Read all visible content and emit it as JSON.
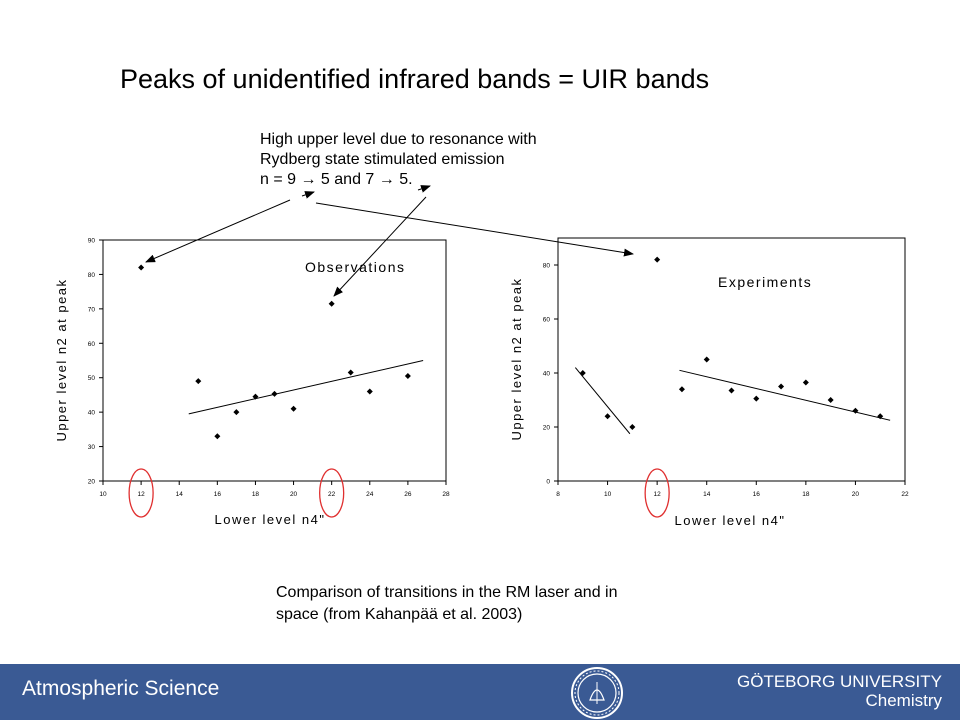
{
  "slide": {
    "title": "Peaks of unidentified infrared bands = UIR bands",
    "note_lines": [
      "High upper level due to resonance with",
      "Rydberg state stimulated emission",
      "n = 9 → 5 and 7 → 5."
    ],
    "caption_lines": [
      "Comparison of transitions in the RM laser and in",
      "space (from Kahanpää et al. 2003)"
    ]
  },
  "footer": {
    "left": "Atmospheric Science",
    "right_line1": "GÖTEBORG UNIVERSITY",
    "right_line2": "Chemistry",
    "background": "#3a5a94",
    "seal_icon": "university-seal-icon"
  },
  "chart_data": [
    {
      "type": "scatter",
      "title": "Observations",
      "xlabel": "Lower level n4\"",
      "ylabel": "Upper level n2 at peak",
      "xlim": [
        10,
        28
      ],
      "ylim": [
        20,
        90
      ],
      "xticks": [
        10,
        12,
        14,
        16,
        18,
        20,
        22,
        24,
        26,
        28
      ],
      "yticks": [
        20,
        30,
        40,
        50,
        60,
        70,
        80,
        90
      ],
      "points": [
        {
          "x": 12,
          "y": 82
        },
        {
          "x": 15,
          "y": 49
        },
        {
          "x": 16,
          "y": 33
        },
        {
          "x": 17,
          "y": 40
        },
        {
          "x": 18,
          "y": 44.5
        },
        {
          "x": 19,
          "y": 45.3
        },
        {
          "x": 20,
          "y": 41
        },
        {
          "x": 22,
          "y": 71.5
        },
        {
          "x": 23,
          "y": 51.5
        },
        {
          "x": 24,
          "y": 46
        },
        {
          "x": 26,
          "y": 50.5
        }
      ],
      "fits": [
        {
          "x": [
            14.5,
            26.8
          ],
          "y": [
            39.5,
            55
          ]
        }
      ],
      "highlight_x": [
        12,
        22
      ],
      "grid": false
    },
    {
      "type": "scatter",
      "title": "Experiments",
      "xlabel": "Lower level n4\"",
      "ylabel": "Upper level n2 at peak",
      "xlim": [
        8,
        22
      ],
      "ylim": [
        0,
        90
      ],
      "xticks": [
        8,
        10,
        12,
        14,
        16,
        18,
        20,
        22
      ],
      "yticks": [
        0,
        20,
        40,
        60,
        80
      ],
      "points": [
        {
          "x": 9,
          "y": 40
        },
        {
          "x": 10,
          "y": 24
        },
        {
          "x": 11,
          "y": 20
        },
        {
          "x": 12,
          "y": 82
        },
        {
          "x": 13,
          "y": 34
        },
        {
          "x": 14,
          "y": 45
        },
        {
          "x": 15,
          "y": 33.5
        },
        {
          "x": 16,
          "y": 30.5
        },
        {
          "x": 17,
          "y": 35
        },
        {
          "x": 18,
          "y": 36.5
        },
        {
          "x": 19,
          "y": 30
        },
        {
          "x": 20,
          "y": 26
        },
        {
          "x": 21,
          "y": 24
        }
      ],
      "fits": [
        {
          "x": [
            8.7,
            10.9
          ],
          "y": [
            42,
            17.5
          ]
        },
        {
          "x": [
            12.9,
            21.4
          ],
          "y": [
            41,
            22.5
          ]
        }
      ],
      "highlight_x": [
        12
      ],
      "grid": false
    }
  ]
}
